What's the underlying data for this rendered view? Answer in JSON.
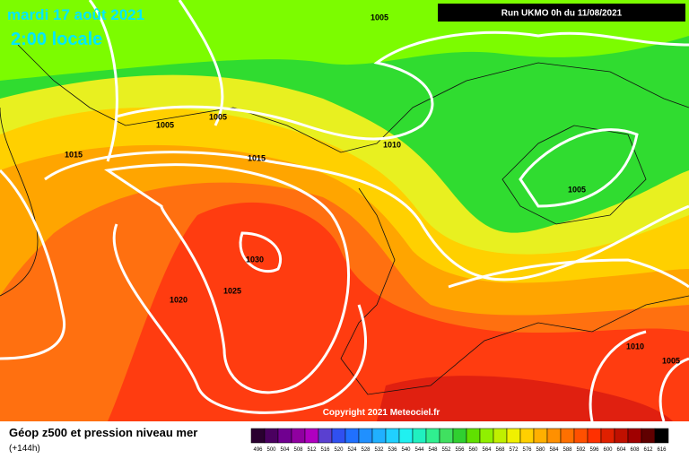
{
  "header": {
    "date": "mardi 17 août 2021",
    "time": "2:00 locale",
    "run": "Run UKMO 0h du 11/08/2021"
  },
  "isobar_labels": [
    "1005",
    "1005",
    "1005",
    "1015",
    "1015",
    "1010",
    "1005",
    "1030",
    "1025",
    "1020",
    "1010",
    "1005"
  ],
  "copyright": "Copyright 2021 Meteociel.fr",
  "footer": {
    "title": "Géop z500 et pression niveau mer",
    "subtitle": "(+144h)"
  },
  "scale": {
    "labels": [
      "496",
      "500",
      "504",
      "508",
      "512",
      "516",
      "520",
      "524",
      "528",
      "532",
      "536",
      "540",
      "544",
      "548",
      "552",
      "556",
      "560",
      "564",
      "568",
      "572",
      "576",
      "580",
      "584",
      "588",
      "592",
      "596",
      "600",
      "604",
      "608",
      "612",
      "616"
    ]
  }
}
